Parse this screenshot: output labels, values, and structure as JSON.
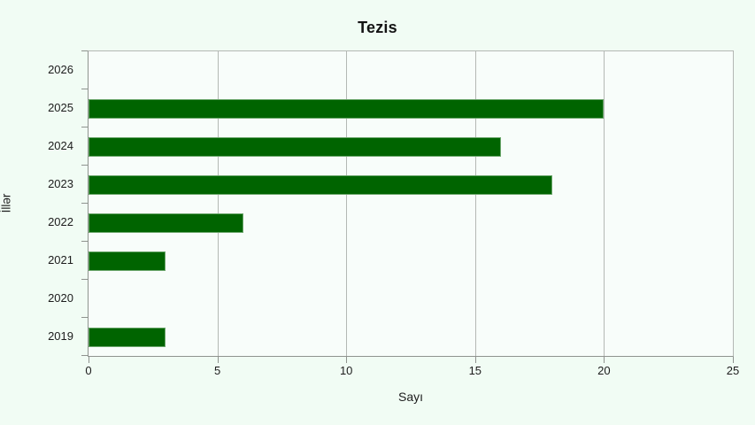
{
  "chart_data": {
    "type": "bar",
    "orientation": "horizontal",
    "title": "Tezis",
    "xlabel": "Sayı",
    "ylabel": "İllər",
    "categories": [
      "2026",
      "2025",
      "2024",
      "2023",
      "2022",
      "2021",
      "2020",
      "2019"
    ],
    "values": [
      0,
      20,
      16,
      18,
      6,
      3,
      0,
      3
    ],
    "xlim": [
      0,
      25
    ],
    "xticks": [
      0,
      5,
      10,
      15,
      20,
      25
    ],
    "grid": "vertical-only",
    "legend": "none",
    "bar_color": "#006400",
    "bar_border_color": "#6aa56a",
    "background_color": "#f1fcf4",
    "plot_background_color": "#f8fdfa",
    "gridline_color": "#b4b8b4",
    "axis_color": "#8f938f"
  }
}
